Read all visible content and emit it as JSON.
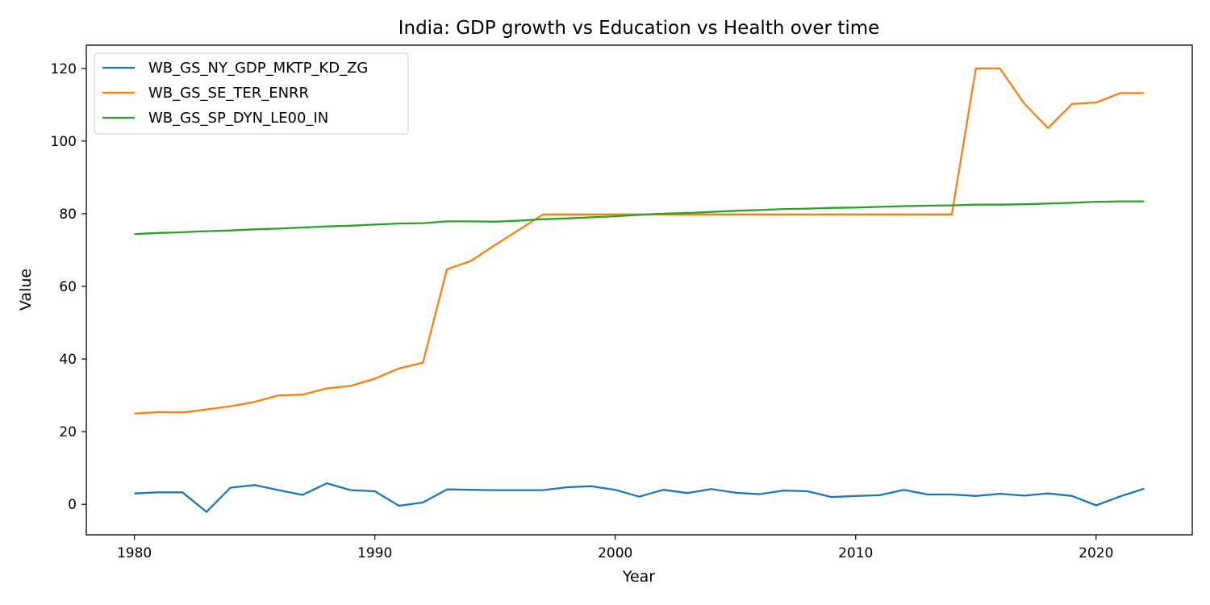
{
  "chart_data": {
    "type": "line",
    "title": "India: GDP growth vs Education vs Health over time",
    "xlabel": "Year",
    "ylabel": "Value",
    "xlim": [
      1978,
      2024
    ],
    "ylim": [
      -8.4,
      126.4
    ],
    "xticks": [
      1980,
      1990,
      2000,
      2010,
      2020
    ],
    "yticks": [
      0,
      20,
      40,
      60,
      80,
      100,
      120
    ],
    "grid": false,
    "legend_position": "upper-left",
    "x": [
      1980,
      1981,
      1982,
      1983,
      1984,
      1985,
      1986,
      1987,
      1988,
      1989,
      1990,
      1991,
      1992,
      1993,
      1994,
      1995,
      1996,
      1997,
      1998,
      1999,
      2000,
      2001,
      2002,
      2003,
      2004,
      2005,
      2006,
      2007,
      2008,
      2009,
      2010,
      2011,
      2012,
      2013,
      2014,
      2015,
      2016,
      2017,
      2018,
      2019,
      2020,
      2021,
      2022
    ],
    "series": [
      {
        "name": "WB_GS_NY_GDP_MKTP_KD_ZG",
        "color": "#1f77b4",
        "values": [
          3.0,
          3.3,
          3.3,
          -2.1,
          4.6,
          5.3,
          3.9,
          2.6,
          5.8,
          3.9,
          3.6,
          -0.4,
          0.5,
          4.1,
          4.0,
          3.9,
          3.9,
          3.9,
          4.7,
          5.0,
          4.0,
          2.1,
          4.0,
          3.1,
          4.2,
          3.2,
          2.8,
          3.8,
          3.6,
          2.0,
          2.3,
          2.5,
          4.0,
          2.7,
          2.7,
          2.3,
          2.9,
          2.4,
          3.0,
          2.3,
          -0.3,
          2.2,
          4.3
        ]
      },
      {
        "name": "WB_GS_SE_TER_ENRR",
        "color": "#ff7f0e",
        "values": [
          25.0,
          25.4,
          25.3,
          26.1,
          27.0,
          28.2,
          30.0,
          30.2,
          31.9,
          32.6,
          34.6,
          37.4,
          39.0,
          64.7,
          67.0,
          71.4,
          75.6,
          79.8,
          79.8,
          79.8,
          79.8,
          79.8,
          79.8,
          79.8,
          79.8,
          79.8,
          79.8,
          79.8,
          79.8,
          79.8,
          79.8,
          79.8,
          79.8,
          79.8,
          79.8,
          120.0,
          120.0,
          110.4,
          103.6,
          110.2,
          110.6,
          113.2,
          113.2
        ]
      },
      {
        "name": "WB_GS_SP_DYN_LE00_IN",
        "color": "#2ca02c",
        "values": [
          74.4,
          74.7,
          74.9,
          75.2,
          75.4,
          75.7,
          75.9,
          76.2,
          76.5,
          76.7,
          77.0,
          77.3,
          77.4,
          77.9,
          77.9,
          77.8,
          78.1,
          78.5,
          78.7,
          79.0,
          79.3,
          79.7,
          80.0,
          80.2,
          80.5,
          80.8,
          81.0,
          81.3,
          81.4,
          81.6,
          81.7,
          81.9,
          82.1,
          82.2,
          82.3,
          82.5,
          82.5,
          82.6,
          82.8,
          83.0,
          83.3,
          83.4,
          83.4
        ]
      }
    ]
  }
}
